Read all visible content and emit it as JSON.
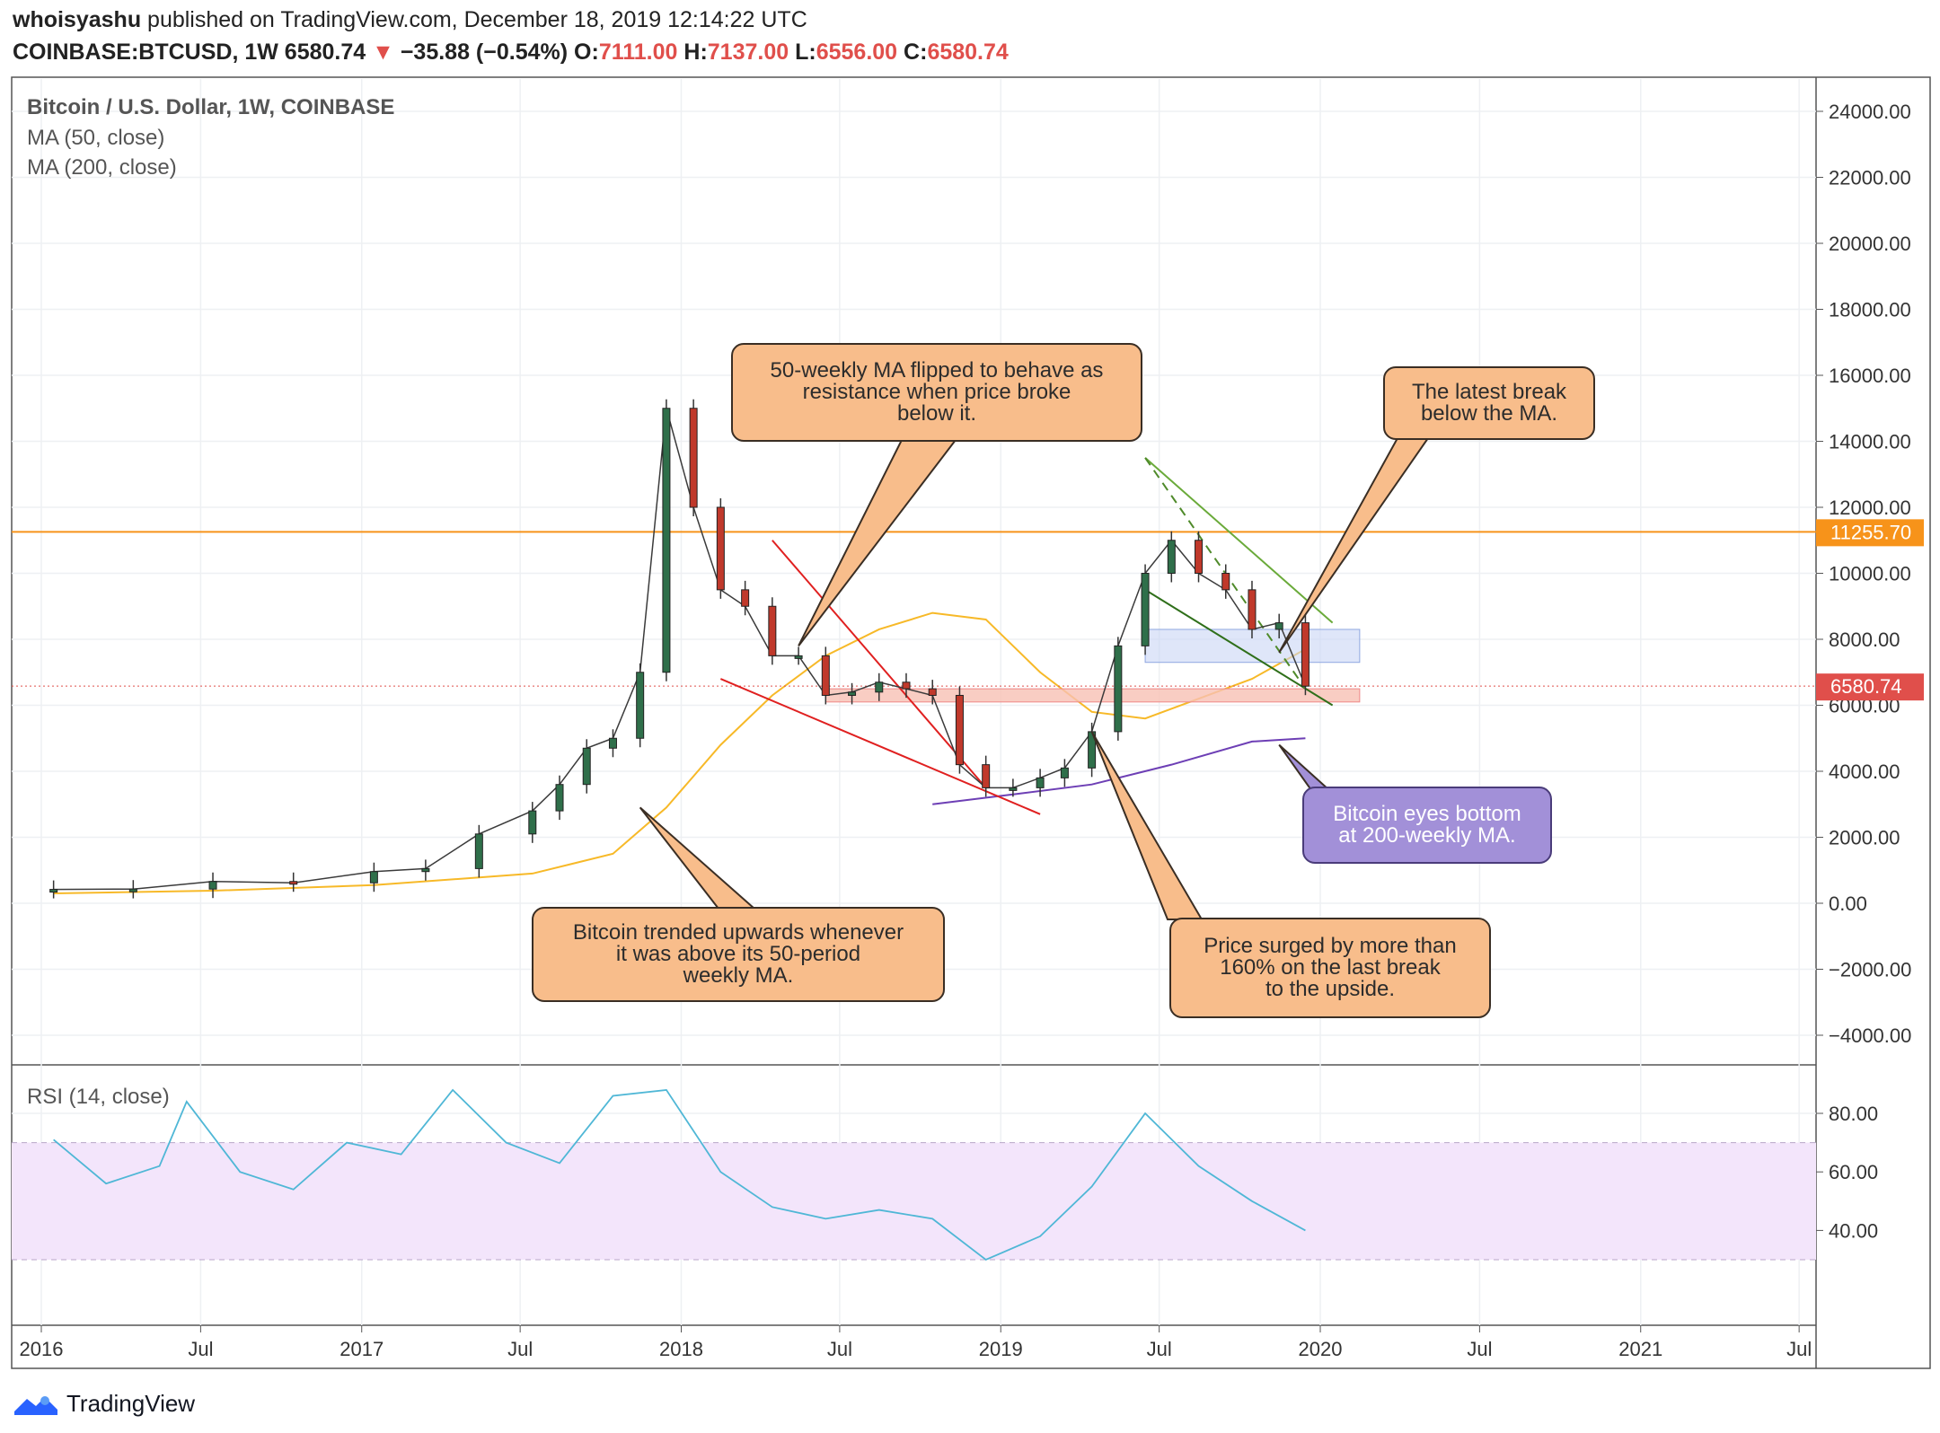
{
  "header": {
    "author": "whoisyashu",
    "published": " published on TradingView.com, December 18, 2019 12:14:22 UTC",
    "symbol": "COINBASE:BTCUSD, 1W",
    "last": "6580.74",
    "change": "−35.88 (−0.54%)",
    "o_label": "O:",
    "o": "7111.00",
    "h_label": "H:",
    "h": "7137.00",
    "l_label": "L:",
    "l": "6556.00",
    "c_label": "C:",
    "c": "6580.74"
  },
  "legend": {
    "title": "Bitcoin / U.S. Dollar, 1W, COINBASE",
    "ma50": "MA (50, close)",
    "ma200": "MA (200, close)",
    "rsi": "RSI (14, close)"
  },
  "callouts": {
    "ma_flip": "50-weekly MA flipped to behave as\nresistance when price broke\nbelow it.",
    "latest_break": "The latest break\nbelow the MA.",
    "trend_up": "Bitcoin trended upwards whenever\nit was above its 50-period\nweekly MA.",
    "surge": "Price surged by more than\n160% on the last break\nto the upside.",
    "bottom": "Bitcoin eyes bottom\nat 200-weekly MA."
  },
  "footer": {
    "brand": "TradingView"
  },
  "colors": {
    "up": "#2f6f4a",
    "down": "#c0392b",
    "ma50": "#f7b928",
    "ma200": "#6d3fb5",
    "resistance": "#f7931a",
    "rsi": "#4fb7d6",
    "rsi_band": "#f3e5fb",
    "callout_orange": "#f8bd8b",
    "callout_purple": "#a290d8",
    "price_tag": "#e04f4b"
  },
  "chart_data": {
    "type": "line",
    "title": "Bitcoin / U.S. Dollar, 1W, COINBASE",
    "x_ticks": [
      "2016",
      "Jul",
      "2017",
      "Jul",
      "2018",
      "Jul",
      "2019",
      "Jul",
      "2020",
      "Jul",
      "2021",
      "Jul"
    ],
    "y_ticks": [
      "24000.00",
      "22000.00",
      "20000.00",
      "18000.00",
      "16000.00",
      "14000.00",
      "12000.00",
      "10000.00",
      "8000.00",
      "6000.00",
      "4000.00",
      "2000.00",
      "0.00",
      "−2000.00",
      "−4000.00"
    ],
    "ylim": [
      -4500,
      25000
    ],
    "price_labels": {
      "resistance": "11255.70",
      "last": "6580.74"
    },
    "resistance_level": 11255.7,
    "last_price": 6580.74,
    "series": [
      {
        "name": "Bitcoin / U.S. Dollar",
        "x": [
          "2016-01",
          "2016-04",
          "2016-07",
          "2016-10",
          "2017-01",
          "2017-03",
          "2017-05",
          "2017-07",
          "2017-08",
          "2017-09",
          "2017-10",
          "2017-11",
          "2017-12",
          "2018-01",
          "2018-02",
          "2018-03",
          "2018-04",
          "2018-05",
          "2018-06",
          "2018-07",
          "2018-08",
          "2018-09",
          "2018-10",
          "2018-11",
          "2018-12",
          "2019-01",
          "2019-02",
          "2019-03",
          "2019-04",
          "2019-05",
          "2019-06",
          "2019-07",
          "2019-08",
          "2019-09",
          "2019-10",
          "2019-11",
          "2019-12"
        ],
        "values": [
          420,
          430,
          660,
          620,
          960,
          1050,
          2100,
          2800,
          3600,
          4700,
          5000,
          7000,
          15000,
          12000,
          9500,
          9000,
          7500,
          7500,
          6300,
          6400,
          6700,
          6500,
          6300,
          4200,
          3500,
          3500,
          3800,
          4100,
          5200,
          7800,
          10000,
          11000,
          10000,
          9500,
          8300,
          8500,
          6580
        ]
      },
      {
        "name": "MA (50, close)",
        "x": [
          "2016-01",
          "2016-07",
          "2017-01",
          "2017-07",
          "2017-10",
          "2017-12",
          "2018-02",
          "2018-04",
          "2018-06",
          "2018-08",
          "2018-10",
          "2018-12",
          "2019-02",
          "2019-04",
          "2019-06",
          "2019-08",
          "2019-10",
          "2019-12"
        ],
        "values": [
          300,
          380,
          550,
          900,
          1500,
          2900,
          4800,
          6300,
          7500,
          8300,
          8800,
          8600,
          7000,
          5800,
          5600,
          6200,
          6800,
          7700
        ]
      },
      {
        "name": "MA (200, close)",
        "x": [
          "2018-10",
          "2019-01",
          "2019-04",
          "2019-07",
          "2019-10",
          "2019-12"
        ],
        "values": [
          3000,
          3300,
          3600,
          4200,
          4900,
          5000
        ]
      }
    ],
    "rsi": {
      "name": "RSI (14, close)",
      "y_ticks": [
        "80.00",
        "60.00",
        "40.00"
      ],
      "band": [
        30,
        70
      ],
      "x": [
        "2016-01",
        "2016-03",
        "2016-05",
        "2016-06",
        "2016-08",
        "2016-10",
        "2016-12",
        "2017-02",
        "2017-04",
        "2017-06",
        "2017-08",
        "2017-10",
        "2017-12",
        "2018-02",
        "2018-04",
        "2018-06",
        "2018-08",
        "2018-10",
        "2018-12",
        "2019-02",
        "2019-04",
        "2019-06",
        "2019-08",
        "2019-10",
        "2019-12"
      ],
      "values": [
        71,
        56,
        62,
        84,
        60,
        54,
        70,
        66,
        88,
        70,
        63,
        86,
        88,
        60,
        48,
        44,
        47,
        44,
        30,
        38,
        55,
        80,
        62,
        50,
        40
      ]
    }
  }
}
